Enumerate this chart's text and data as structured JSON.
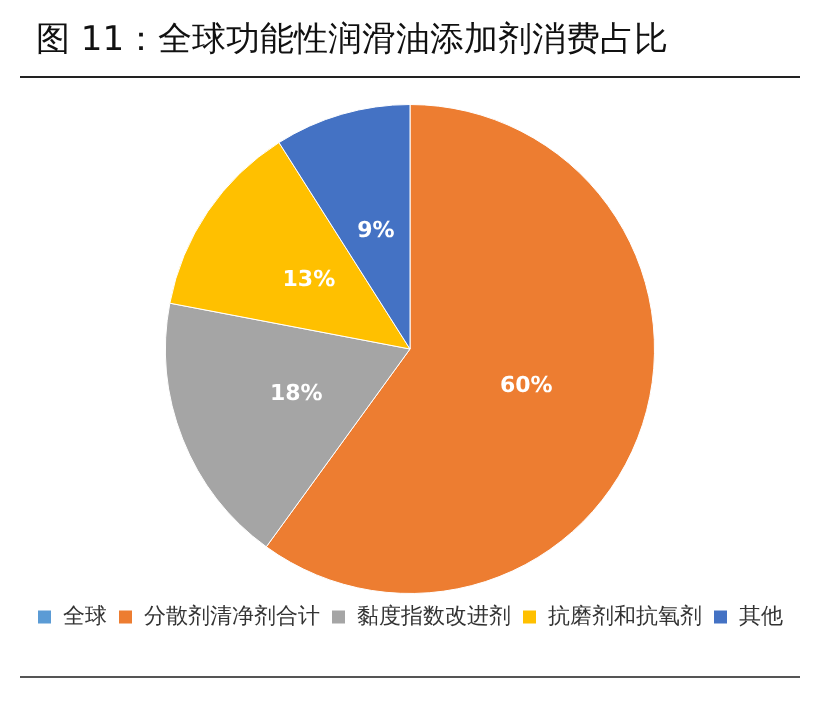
{
  "chart_data": {
    "type": "pie",
    "title": "图 11：全球功能性润滑油添加剂消费占比",
    "categories": [
      "全球",
      "分散剂清净剂合计",
      "黏度指数改进剂",
      "抗磨剂和抗氧剂",
      "其他"
    ],
    "values": [
      null,
      60,
      18,
      13,
      9
    ],
    "colors": [
      "#5b9bd5",
      "#ed7d31",
      "#a5a5a5",
      "#ffc000",
      "#4472c4"
    ],
    "value_labels": [
      null,
      "60%",
      "18%",
      "13%",
      "9%"
    ],
    "legend": "bottom"
  }
}
